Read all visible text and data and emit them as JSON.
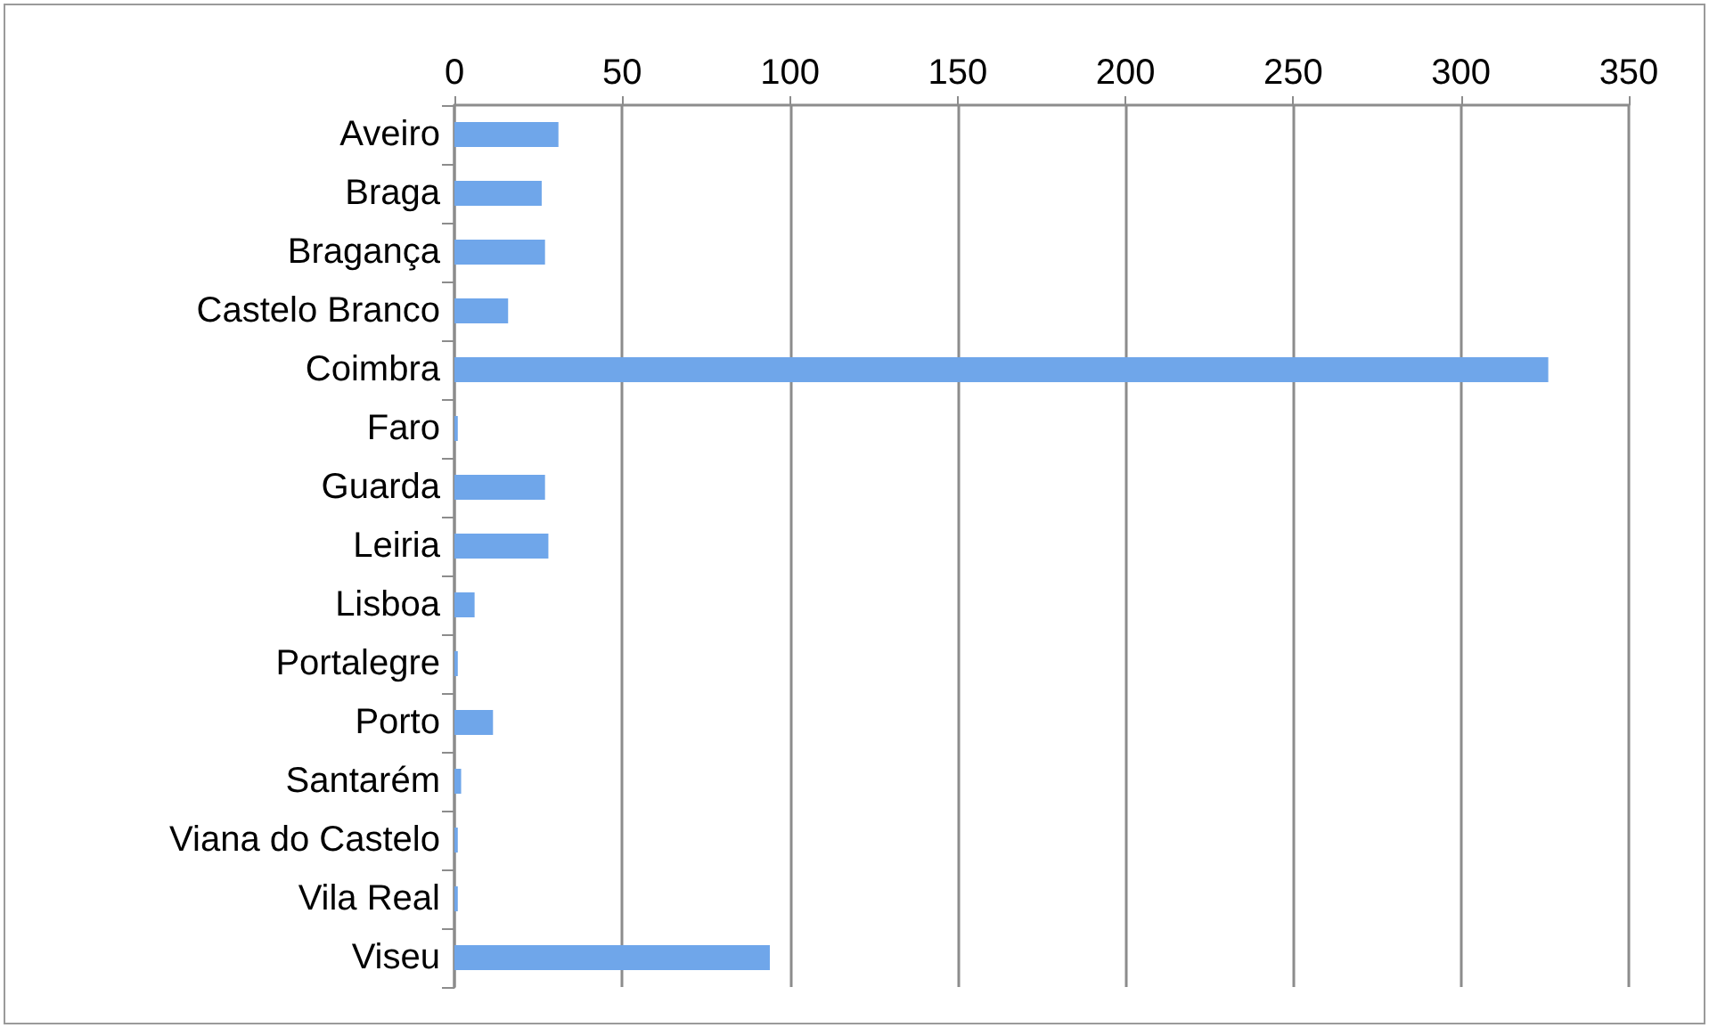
{
  "chart_data": {
    "type": "bar",
    "orientation": "horizontal",
    "categories": [
      "Aveiro",
      "Braga",
      "Bragança",
      "Castelo Branco",
      "Coimbra",
      "Faro",
      "Guarda",
      "Leiria",
      "Lisboa",
      "Portalegre",
      "Porto",
      "Santarém",
      "Viana do Castelo",
      "Vila Real",
      "Viseu"
    ],
    "values": [
      31,
      26,
      27,
      16,
      326,
      1,
      27,
      28,
      6,
      1,
      11.5,
      2,
      1,
      1,
      94
    ],
    "color": "#6fa6ea",
    "xlim": [
      0,
      350
    ],
    "xticks": [
      0,
      50,
      100,
      150,
      200,
      250,
      300,
      350
    ],
    "grid": "x"
  }
}
